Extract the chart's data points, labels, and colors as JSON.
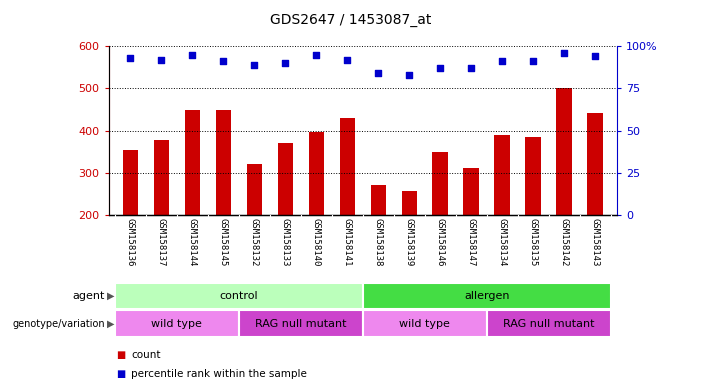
{
  "title": "GDS2647 / 1453087_at",
  "samples": [
    "GSM158136",
    "GSM158137",
    "GSM158144",
    "GSM158145",
    "GSM158132",
    "GSM158133",
    "GSM158140",
    "GSM158141",
    "GSM158138",
    "GSM158139",
    "GSM158146",
    "GSM158147",
    "GSM158134",
    "GSM158135",
    "GSM158142",
    "GSM158143"
  ],
  "counts": [
    355,
    378,
    448,
    448,
    320,
    370,
    397,
    430,
    272,
    258,
    350,
    311,
    390,
    385,
    500,
    442
  ],
  "percentile_ranks": [
    93,
    92,
    95,
    91,
    89,
    90,
    95,
    92,
    84,
    83,
    87,
    87,
    91,
    91,
    96,
    94
  ],
  "bar_color": "#cc0000",
  "dot_color": "#0000cc",
  "ylim_left": [
    200,
    600
  ],
  "yticks_left": [
    200,
    300,
    400,
    500,
    600
  ],
  "ylim_right": [
    0,
    100
  ],
  "yticks_right": [
    0,
    25,
    50,
    75,
    100
  ],
  "agent_groups": [
    {
      "label": "control",
      "start": 0,
      "end": 8,
      "color": "#bbffbb"
    },
    {
      "label": "allergen",
      "start": 8,
      "end": 16,
      "color": "#44dd44"
    }
  ],
  "genotype_groups": [
    {
      "label": "wild type",
      "start": 0,
      "end": 4,
      "color": "#ee88ee"
    },
    {
      "label": "RAG null mutant",
      "start": 4,
      "end": 8,
      "color": "#cc44cc"
    },
    {
      "label": "wild type",
      "start": 8,
      "end": 12,
      "color": "#ee88ee"
    },
    {
      "label": "RAG null mutant",
      "start": 12,
      "end": 16,
      "color": "#cc44cc"
    }
  ],
  "legend_count_color": "#cc0000",
  "legend_dot_color": "#0000cc",
  "left_axis_color": "#cc0000",
  "right_axis_color": "#0000cc",
  "grid_color": "#000000",
  "background_color": "#ffffff",
  "tick_label_area_color": "#cccccc",
  "bar_width": 0.5
}
